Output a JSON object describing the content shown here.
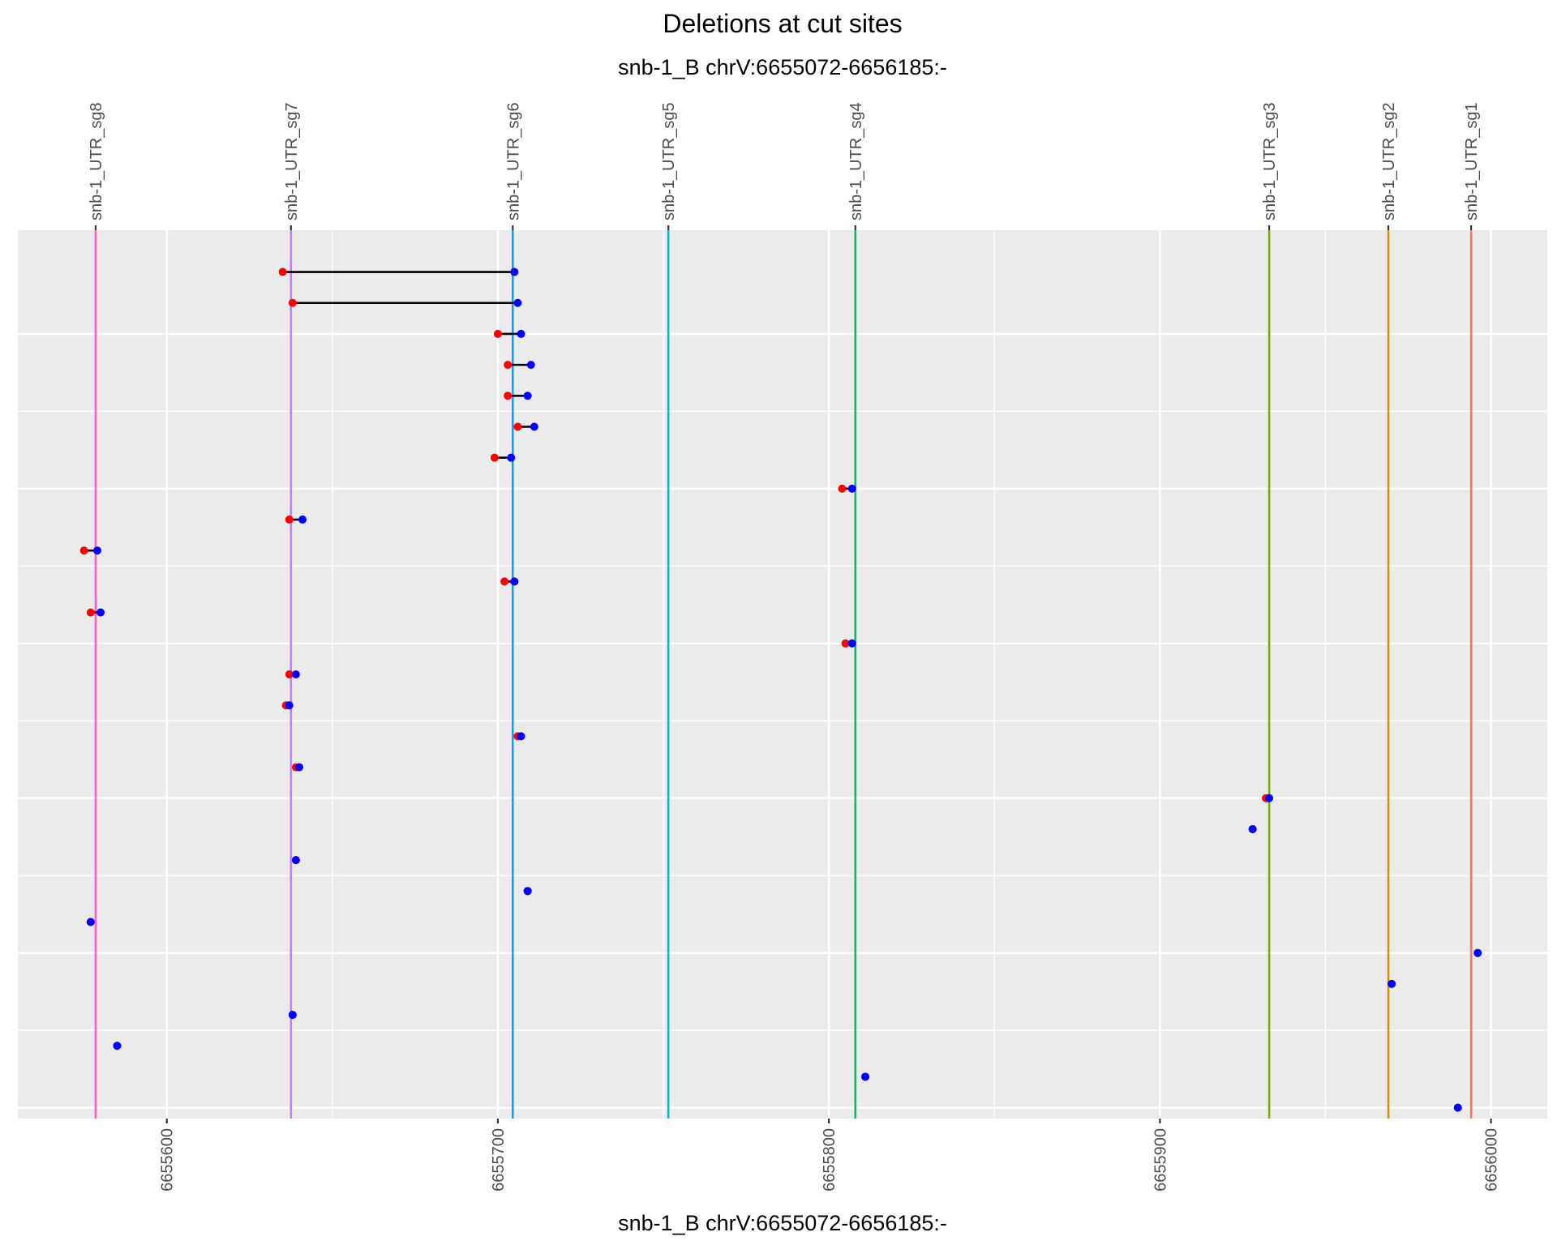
{
  "chart_data": {
    "type": "scatter",
    "title": "Deletions at cut sites",
    "subtitle": "snb-1_B chrV:6655072-6656185:-",
    "xlabel": "snb-1_B chrV:6655072-6656185:-",
    "ylabel": "",
    "xlim": [
      6655555,
      6656017
    ],
    "ylim": [
      0.65,
      29.35
    ],
    "x_ticks": [
      6655600,
      6655700,
      6655800,
      6655900,
      6656000
    ],
    "y_major_gridlines": [
      1,
      6,
      11,
      16,
      21,
      26
    ],
    "grid": true,
    "legend": "none",
    "panel_color": "#ebebeb",
    "start_color": "#ff0000",
    "end_color": "#0000ff",
    "segment_color": "#000000",
    "cut_sites": [
      {
        "name": "snb-1_UTR_sg8",
        "x": 6655578.5,
        "color": "#ff61c3"
      },
      {
        "name": "snb-1_UTR_sg7",
        "x": 6655637.5,
        "color": "#c77cff"
      },
      {
        "name": "snb-1_UTR_sg6",
        "x": 6655704.5,
        "color": "#00a9ff"
      },
      {
        "name": "snb-1_UTR_sg5",
        "x": 6655751.5,
        "color": "#00bfc4"
      },
      {
        "name": "snb-1_UTR_sg4",
        "x": 6655808,
        "color": "#00be67"
      },
      {
        "name": "snb-1_UTR_sg3",
        "x": 6655933,
        "color": "#7cae00"
      },
      {
        "name": "snb-1_UTR_sg2",
        "x": 6655969,
        "color": "#cd9600"
      },
      {
        "name": "snb-1_UTR_sg1",
        "x": 6655994,
        "color": "#f8766d"
      }
    ],
    "deletions": [
      {
        "y": 28,
        "start": 6655635,
        "end": 6655705
      },
      {
        "y": 27,
        "start": 6655638,
        "end": 6655706
      },
      {
        "y": 26,
        "start": 6655700,
        "end": 6655707
      },
      {
        "y": 25,
        "start": 6655703,
        "end": 6655710
      },
      {
        "y": 24,
        "start": 6655703,
        "end": 6655709
      },
      {
        "y": 23,
        "start": 6655706,
        "end": 6655711
      },
      {
        "y": 22,
        "start": 6655699,
        "end": 6655704
      },
      {
        "y": 21,
        "start": 6655804,
        "end": 6655807
      },
      {
        "y": 20,
        "start": 6655637,
        "end": 6655641
      },
      {
        "y": 19,
        "start": 6655575,
        "end": 6655579
      },
      {
        "y": 18,
        "start": 6655702,
        "end": 6655705
      },
      {
        "y": 17,
        "start": 6655577,
        "end": 6655580
      },
      {
        "y": 16,
        "start": 6655805,
        "end": 6655807
      },
      {
        "y": 15,
        "start": 6655637,
        "end": 6655639
      },
      {
        "y": 14,
        "start": 6655636,
        "end": 6655637
      },
      {
        "y": 13,
        "start": 6655706,
        "end": 6655707
      },
      {
        "y": 12,
        "start": 6655639,
        "end": 6655640
      },
      {
        "y": 11,
        "start": 6655932,
        "end": 6655933
      },
      {
        "y": 10,
        "start": 6655928,
        "end": 6655928
      },
      {
        "y": 9,
        "start": 6655639,
        "end": 6655639
      },
      {
        "y": 8,
        "start": 6655709,
        "end": 6655709
      },
      {
        "y": 7,
        "start": 6655577,
        "end": 6655577
      },
      {
        "y": 6,
        "start": 6655996,
        "end": 6655996
      },
      {
        "y": 5,
        "start": 6655970,
        "end": 6655970
      },
      {
        "y": 4,
        "start": 6655638,
        "end": 6655638
      },
      {
        "y": 3,
        "start": 6655585,
        "end": 6655585
      },
      {
        "y": 2,
        "start": 6655811,
        "end": 6655811
      },
      {
        "y": 1,
        "start": 6655990,
        "end": 6655990
      }
    ]
  }
}
